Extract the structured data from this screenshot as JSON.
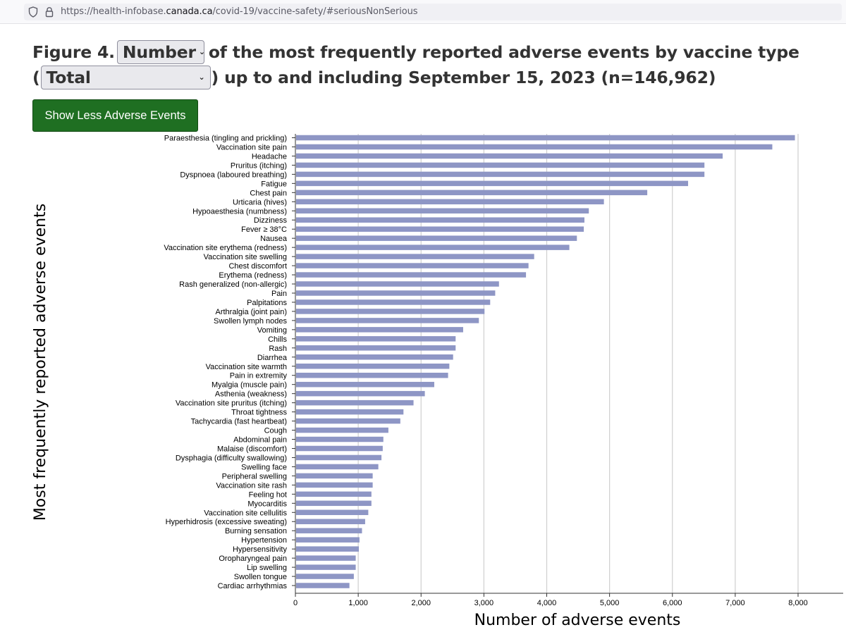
{
  "browser": {
    "url_prefix": "https://health-infobase.",
    "url_domain": "canada.ca",
    "url_suffix": "/covid-19/vaccine-safety/#seriousNonSerious",
    "shield_icon": "shield-icon",
    "lock_icon": "lock-icon"
  },
  "heading": {
    "prefix": "Figure 4.",
    "measure_select": "Number",
    "middle": "of the most frequently reported adverse events by vaccine type",
    "open_paren": "(",
    "vaccine_select": "Total",
    "suffix": ") up to and including September 15, 2023 (n=146,962)",
    "chevron_icon": "chevron-down-icon"
  },
  "toggle_button": {
    "label": "Show Less Adverse Events"
  },
  "colors": {
    "bar": "#8e96c5",
    "grid": "#cfcfcf",
    "button": "#1f6f22"
  },
  "chart_data": {
    "type": "bar",
    "orientation": "horizontal",
    "xlabel": "Number of adverse events",
    "ylabel": "Most frequently reported adverse events",
    "xlim": [
      0,
      8000
    ],
    "xticks": [
      "0",
      "1,000",
      "2,000",
      "3,000",
      "4,000",
      "5,000",
      "6,000",
      "7,000",
      "8,000"
    ],
    "grid": "vertical",
    "categories": [
      "Paraesthesia (tingling and prickling)",
      "Vaccination site pain",
      "Headache",
      "Pruritus (itching)",
      "Dyspnoea (laboured breathing)",
      "Fatigue",
      "Chest pain",
      "Urticaria (hives)",
      "Hypoaesthesia (numbness)",
      "Dizziness",
      "Fever ≥ 38°C",
      "Nausea",
      "Vaccination site erythema (redness)",
      "Vaccination site swelling",
      "Chest discomfort",
      "Erythema (redness)",
      "Rash generalized (non-allergic)",
      "Pain",
      "Palpitations",
      "Arthralgia (joint pain)",
      "Swollen lymph nodes",
      "Vomiting",
      "Chills",
      "Rash",
      "Diarrhea",
      "Vaccination site warmth",
      "Pain in extremity",
      "Myalgia (muscle pain)",
      "Asthenia (weakness)",
      "Vaccination site pruritus (itching)",
      "Throat tightness",
      "Tachycardia (fast heartbeat)",
      "Cough",
      "Abdominal pain",
      "Malaise (discomfort)",
      "Dysphagia (difficulty swallowing)",
      "Swelling face",
      "Peripheral swelling",
      "Vaccination site rash",
      "Feeling hot",
      "Myocarditis",
      "Vaccination site cellulitis",
      "Hyperhidrosis (excessive sweating)",
      "Burning sensation",
      "Hypertension",
      "Hypersensitivity",
      "Oropharyngeal pain",
      "Lip swelling",
      "Swollen tongue",
      "Cardiac arrhythmias"
    ],
    "values": [
      7950,
      7590,
      6800,
      6510,
      6510,
      6250,
      5600,
      4910,
      4670,
      4600,
      4590,
      4480,
      4360,
      3800,
      3710,
      3670,
      3240,
      3180,
      3100,
      3010,
      2920,
      2670,
      2550,
      2550,
      2510,
      2450,
      2430,
      2210,
      2060,
      1880,
      1720,
      1670,
      1480,
      1400,
      1390,
      1370,
      1320,
      1230,
      1230,
      1210,
      1210,
      1160,
      1110,
      1060,
      1020,
      1010,
      960,
      960,
      930,
      860
    ]
  }
}
